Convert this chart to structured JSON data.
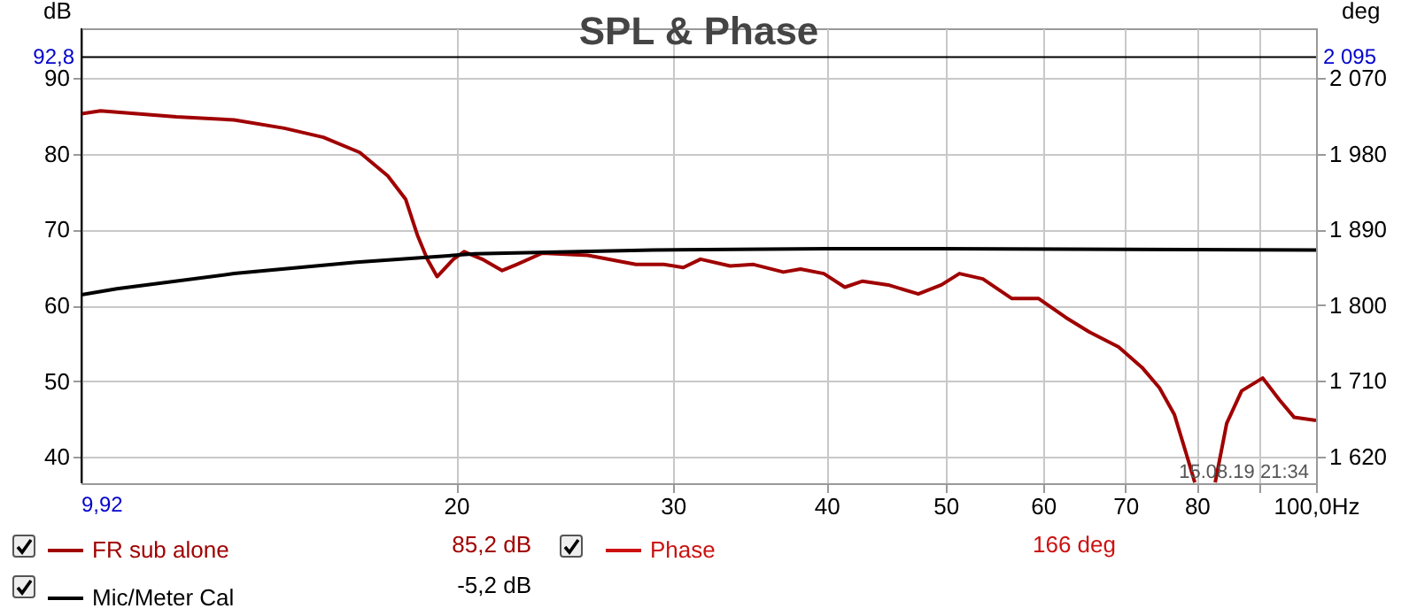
{
  "chart_data": {
    "type": "line",
    "title": "SPL & Phase",
    "ylabel": "dB",
    "y2label": "deg",
    "xlim": [
      9.92,
      100
    ],
    "xticks": [
      20,
      30,
      40,
      50,
      60,
      70,
      80,
      {
        "value": 90,
        "label": null
      },
      {
        "value": 100,
        "label": "100,0Hz"
      }
    ],
    "ylim": [
      36.5,
      96.6
    ],
    "yticks": [
      40,
      50,
      60,
      70,
      80,
      90
    ],
    "y2lim": [
      1588,
      2129
    ],
    "y2ticks": [
      {
        "value": 1620,
        "label": "1 620"
      },
      {
        "value": 1710,
        "label": "1 710"
      },
      {
        "value": 1800,
        "label": "1 800"
      },
      {
        "value": 1890,
        "label": "1 890"
      },
      {
        "value": 1980,
        "label": "1 980"
      },
      {
        "value": 2070,
        "label": "2 070"
      }
    ],
    "log": "x",
    "grid": true,
    "legend": "bottom",
    "series": [
      {
        "name": "FR sub alone",
        "color": "#a00000",
        "x": [
          9.92,
          10.28,
          11.85,
          13.2,
          14.5,
          15.6,
          16.7,
          17.6,
          18.2,
          18.6,
          18.95,
          19.3,
          19.9,
          20.3,
          21.0,
          21.8,
          22.4,
          23.5,
          25.6,
          28.0,
          29.5,
          30.6,
          31.6,
          33.4,
          34.9,
          36.9,
          38.1,
          39.8,
          41.4,
          42.8,
          44.9,
          47.5,
          49.6,
          51.3,
          53.6,
          56.6,
          59.5,
          62.6,
          65.4,
          69.1,
          72.2,
          74.6,
          76.7,
          78.4,
          79.7,
          81,
          82.8,
          84.6,
          87.0,
          90.5,
          93.4,
          96.0,
          100
        ],
        "values": [
          85.3,
          85.7,
          84.9,
          84.5,
          83.4,
          82.2,
          80.2,
          77.1,
          74.0,
          69.3,
          66.1,
          63.8,
          66.1,
          67.1,
          66.1,
          64.6,
          65.4,
          66.9,
          66.6,
          65.4,
          65.4,
          65.0,
          66.1,
          65.2,
          65.4,
          64.4,
          64.8,
          64.2,
          62.4,
          63.2,
          62.7,
          61.5,
          62.7,
          64.2,
          63.5,
          60.9,
          60.9,
          58.4,
          56.5,
          54.5,
          51.8,
          49.1,
          45.6,
          40.5,
          36.6,
          null,
          36.6,
          44.4,
          48.7,
          50.4,
          47.5,
          45.2,
          44.8
        ]
      },
      {
        "name": "Phase",
        "color": "#cc1111"
      },
      {
        "name": "Mic/Meter Cal",
        "color": "#000000",
        "x": [
          9.92,
          10.6,
          13.2,
          16.6,
          20.7,
          28.9,
          40,
          49.6,
          100
        ],
        "values": [
          61.4,
          62.2,
          64.2,
          65.7,
          66.8,
          67.3,
          67.5,
          67.5,
          67.3
        ]
      }
    ],
    "ref_lines": [
      {
        "axis": "y",
        "value": 92.8,
        "label": "92,8",
        "color": "#000000"
      },
      {
        "axis": "x",
        "value": 9.92,
        "label": "9,92",
        "color": "#000000"
      }
    ],
    "annotations": [
      "85,2 dB",
      "166 deg",
      "-5,2 dB",
      "15.08.19 21:34",
      "2 095"
    ]
  }
}
